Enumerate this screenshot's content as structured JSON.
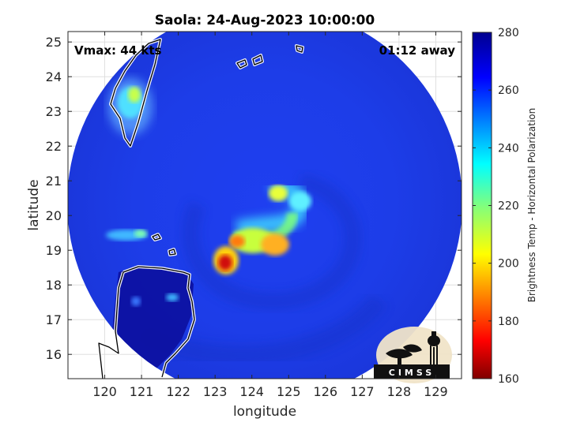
{
  "title": "Saola: 24-Aug-2023 10:00:00",
  "vmax_label": "Vmax: 44 kts",
  "time_label": "01:12 away",
  "xlabel": "longitude",
  "ylabel": "latitude",
  "colorbar_label": "Brightness Temp - Horizontal Polarization",
  "logo_text": "CIMSS",
  "map_data": {
    "type": "heatmap",
    "xlim": [
      119,
      129.7
    ],
    "ylim": [
      15.3,
      25.3
    ],
    "x_ticks": [
      120,
      121,
      122,
      123,
      124,
      125,
      126,
      127,
      128,
      129
    ],
    "y_ticks": [
      16,
      17,
      18,
      19,
      20,
      21,
      22,
      23,
      24,
      25
    ],
    "grid": true,
    "swath_center": [
      124.2,
      20.3
    ],
    "colorbar": {
      "min": 160,
      "max": 280,
      "ticks": [
        160,
        180,
        200,
        220,
        240,
        260,
        280
      ],
      "colormap": "jet"
    }
  },
  "colors": {
    "land_outline": "#000000",
    "coast_glow": "#ffffff",
    "background_fill": "#ffffff"
  }
}
